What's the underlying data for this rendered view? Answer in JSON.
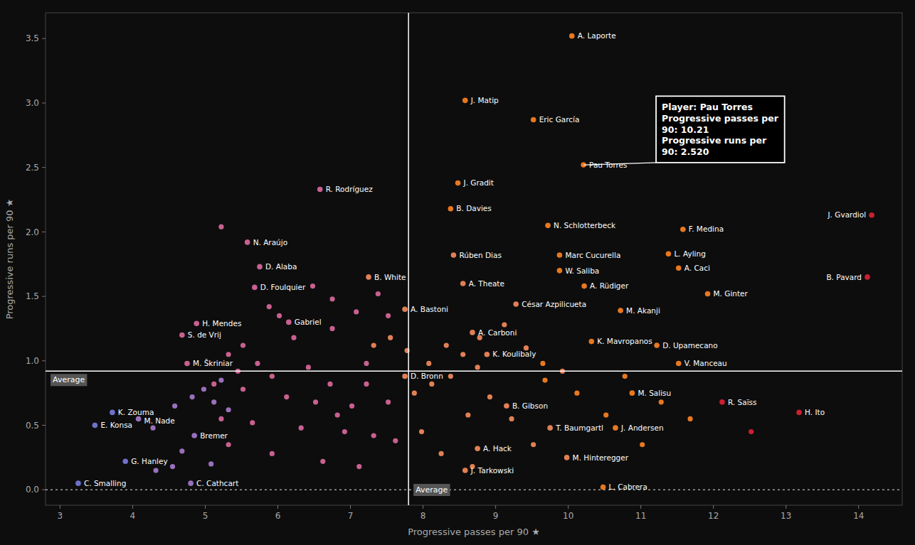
{
  "chart_data": {
    "type": "scatter",
    "xlabel": "Progressive passes per 90 ★",
    "ylabel": "Progressive runs per 90 ★",
    "xlim": [
      2.8,
      14.6
    ],
    "ylim": [
      -0.12,
      3.7
    ],
    "xticks": [
      3,
      4,
      5,
      6,
      7,
      8,
      9,
      10,
      11,
      12,
      13,
      14
    ],
    "yticks": [
      {
        "value": 0,
        "label": "0.0"
      },
      0.5,
      {
        "value": 1,
        "label": "1.0"
      },
      1.5,
      {
        "value": 2,
        "label": "2.0"
      },
      2.5,
      {
        "value": 3,
        "label": "3.0"
      },
      3.5
    ],
    "grid": false,
    "reference_lines": [
      {
        "axis": "y",
        "value": 0.92,
        "label": "Average"
      },
      {
        "axis": "x",
        "value": 7.8,
        "label": "Average"
      },
      {
        "axis": "y",
        "value": 0,
        "line_style": "dotted"
      }
    ],
    "annotations": [
      {
        "x": 10.21,
        "y": 2.52,
        "text": "Player: Pau Torres\nProgressive passes per\n90: 10.21\nProgressive runs per\n90: 2.520"
      }
    ],
    "series": [
      {
        "x": [
          5.22,
          5.88,
          6.02,
          6.22,
          5.52,
          5.32,
          5.72,
          6.42,
          5.92,
          6.72,
          5.12,
          7.22,
          5.52,
          6.12,
          6.52,
          7.52,
          7.02,
          6.82,
          5.22,
          5.65,
          6.32,
          6.92,
          7.32,
          7.62,
          5.32,
          5.92,
          6.62,
          7.12,
          5.08,
          4.55,
          4.32,
          4.68,
          4.28,
          4.58,
          4.82,
          5.12,
          5.32,
          4.98,
          5.22,
          5.45,
          7.88,
          8.12,
          8.38,
          8.62,
          8.92,
          9.22,
          9.52,
          7.98,
          8.25,
          8.68,
          10.12,
          10.52,
          11.02,
          9.68,
          9.92,
          8.75,
          8.55,
          8.08,
          7.78,
          7.55,
          7.32,
          8.32,
          8.78,
          9.12,
          9.42,
          9.65,
          10.78,
          11.28,
          11.68,
          12.52,
          6.75,
          6.48,
          6.75,
          7.08,
          7.38,
          7.52,
          7.22
        ],
        "values": [
          2.04,
          1.42,
          1.35,
          1.18,
          1.12,
          1.05,
          0.98,
          0.95,
          0.88,
          0.82,
          0.82,
          0.82,
          0.78,
          0.72,
          0.68,
          0.68,
          0.65,
          0.58,
          0.55,
          0.52,
          0.48,
          0.45,
          0.42,
          0.38,
          0.35,
          0.28,
          0.22,
          0.18,
          0.2,
          0.18,
          0.15,
          0.3,
          0.48,
          0.65,
          0.72,
          0.68,
          0.62,
          0.78,
          0.85,
          0.92,
          0.75,
          0.82,
          0.88,
          0.58,
          0.72,
          0.55,
          0.35,
          0.45,
          0.28,
          0.18,
          0.75,
          0.58,
          0.35,
          0.85,
          0.92,
          0.95,
          1.05,
          0.98,
          1.08,
          1.18,
          1.12,
          1.12,
          1.18,
          1.28,
          1.1,
          0.98,
          0.88,
          0.68,
          0.55,
          0.45,
          1.48,
          1.58,
          1.25,
          1.38,
          1.52,
          1.35,
          0.98
        ],
        "colors": [
          "#c86090",
          "#c86090",
          "#c86090",
          "#c86090",
          "#c86090",
          "#c86090",
          "#c86090",
          "#c86090",
          "#c86090",
          "#c86090",
          "#c86090",
          "#c86090",
          "#c86090",
          "#c86090",
          "#c86090",
          "#c86090",
          "#c86090",
          "#c86090",
          "#c86090",
          "#c86090",
          "#c86090",
          "#c86090",
          "#c86090",
          "#c86090",
          "#c86090",
          "#c86090",
          "#c86090",
          "#c86090",
          "#9970bb",
          "#9970bb",
          "#9970bb",
          "#9970bb",
          "#9970bb",
          "#9970bb",
          "#9970bb",
          "#9970bb",
          "#9970bb",
          "#9970bb",
          "#9970bb",
          "#c86090",
          "#e08055",
          "#e08055",
          "#e08055",
          "#e08055",
          "#e08055",
          "#e08055",
          "#e08055",
          "#e08055",
          "#e08055",
          "#e08055",
          "#e87820",
          "#e87820",
          "#e87820",
          "#e87820",
          "#e08055",
          "#e08055",
          "#e08055",
          "#e08055",
          "#e08055",
          "#e08055",
          "#e08055",
          "#e08055",
          "#e08055",
          "#e08055",
          "#e08055",
          "#e87820",
          "#e87820",
          "#e87820",
          "#e87820",
          "#cc2030",
          "#c86090",
          "#c86090",
          "#c86090",
          "#c86090",
          "#c86090",
          "#c86090",
          "#c86090"
        ]
      },
      {
        "labels": [
          "A. Laporte",
          "J. Matip",
          "Eric García",
          "Pau Torres",
          "J. Gradit",
          "R. Rodríguez",
          "J. Gvardiol",
          "B. Davies",
          "F. Medina",
          "N. Schlotterbeck",
          "N. Araújo",
          "L. Ayling",
          "Marc Cucurella",
          "Rúben Dias",
          "D. Alaba",
          "B. White",
          "A. Caci",
          "W. Saliba",
          "B. Pavard",
          "D. Foulquier",
          "A. Rüdiger",
          "A. Theate",
          "M. Ginter",
          "César Azpilicueta",
          "A. Bastoni",
          "M. Akanji",
          "H. Mendes",
          "S. de Vrij",
          "Gabriel",
          "A. Carboni",
          "K. Mavropanos",
          "D. Upamecano",
          "K. Koulibaly",
          "V. Manceau",
          "M. Škriniar",
          "D. Bronn",
          "M. Salisu",
          "B. Gibson",
          "R. Saïss",
          "H. Ito",
          "K. Zouma",
          "M. Nade",
          "T. Baumgartl",
          "J. Andersen",
          "E. Konsa",
          "Bremer",
          "A. Hack",
          "M. Hinteregger",
          "G. Hanley",
          "C. Cathcart",
          "J. Tarkowski",
          "L. Cabrera",
          "C. Smalling"
        ],
        "x": [
          10.05,
          8.58,
          9.52,
          10.21,
          8.48,
          6.58,
          14.18,
          8.38,
          11.58,
          9.72,
          5.58,
          11.38,
          9.88,
          8.42,
          5.75,
          7.25,
          11.52,
          9.88,
          14.12,
          5.68,
          10.22,
          8.55,
          11.92,
          9.28,
          7.75,
          10.72,
          4.88,
          4.68,
          6.15,
          8.68,
          10.32,
          11.22,
          8.88,
          11.52,
          4.75,
          7.75,
          10.88,
          9.15,
          12.12,
          13.18,
          3.72,
          4.08,
          9.75,
          10.65,
          3.48,
          4.85,
          8.75,
          9.98,
          3.9,
          4.8,
          8.58,
          10.48,
          3.25
        ],
        "values": [
          3.52,
          3.02,
          2.87,
          2.52,
          2.38,
          2.33,
          2.13,
          2.18,
          2.02,
          2.05,
          1.92,
          1.83,
          1.82,
          1.82,
          1.73,
          1.65,
          1.72,
          1.7,
          1.65,
          1.57,
          1.58,
          1.6,
          1.52,
          1.44,
          1.4,
          1.39,
          1.29,
          1.2,
          1.3,
          1.22,
          1.15,
          1.12,
          1.05,
          0.98,
          0.98,
          0.88,
          0.75,
          0.65,
          0.68,
          0.6,
          0.6,
          0.55,
          0.48,
          0.48,
          0.5,
          0.42,
          0.32,
          0.25,
          0.22,
          0.05,
          0.15,
          0.02,
          0.05
        ],
        "colors": [
          "#e87820",
          "#e87820",
          "#e87820",
          "#e87820",
          "#e87820",
          "#c86090",
          "#cc2030",
          "#e87820",
          "#e87820",
          "#e87820",
          "#c86090",
          "#e87820",
          "#e87820",
          "#e08055",
          "#c86090",
          "#e08055",
          "#e87820",
          "#e87820",
          "#cc2030",
          "#c86090",
          "#e87820",
          "#e08055",
          "#e87820",
          "#e08055",
          "#e08055",
          "#e87820",
          "#c86090",
          "#c86090",
          "#c86090",
          "#e08055",
          "#e87820",
          "#e87820",
          "#e08055",
          "#e87820",
          "#c86090",
          "#e08055",
          "#e87820",
          "#e08055",
          "#cc2030",
          "#cc2030",
          "#7070cc",
          "#9970bb",
          "#e08055",
          "#e87820",
          "#7070cc",
          "#9970bb",
          "#e08055",
          "#e08055",
          "#7070cc",
          "#9970bb",
          "#e08055",
          "#e87820",
          "#7070cc"
        ]
      }
    ]
  }
}
